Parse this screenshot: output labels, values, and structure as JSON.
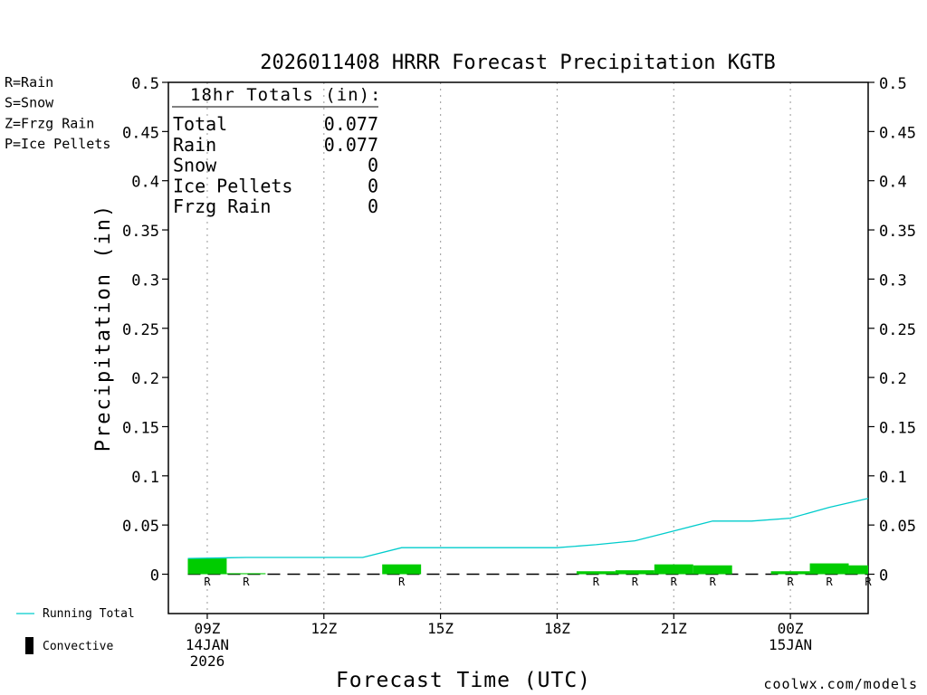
{
  "chart_data": {
    "type": "bar",
    "title": "2026011408 HRRR Forecast Precipitation KGTB",
    "xlabel": "Forecast Time (UTC)",
    "ylabel": "Precipitation (in)",
    "ylim": [
      -0.04,
      0.5
    ],
    "yticks": [
      "0",
      "0.05",
      "0.1",
      "0.15",
      "0.2",
      "0.25",
      "0.3",
      "0.35",
      "0.4",
      "0.45",
      "0.5"
    ],
    "xlim_hours": [
      0,
      18
    ],
    "xticks": [
      {
        "hour": 1,
        "lines": [
          "09Z",
          "14JAN",
          "2026"
        ]
      },
      {
        "hour": 4,
        "lines": [
          "12Z"
        ]
      },
      {
        "hour": 7,
        "lines": [
          "15Z"
        ]
      },
      {
        "hour": 10,
        "lines": [
          "18Z"
        ]
      },
      {
        "hour": 13,
        "lines": [
          "21Z"
        ]
      },
      {
        "hour": 16,
        "lines": [
          "00Z",
          "15JAN"
        ]
      }
    ],
    "grid": "vertical dotted",
    "bar_hours": [
      1,
      2,
      3,
      4,
      5,
      6,
      7,
      8,
      9,
      10,
      11,
      12,
      13,
      14,
      15,
      16,
      17,
      18
    ],
    "series": [
      {
        "name": "Rain",
        "color": "#00cc00",
        "values": [
          0.016,
          0.001,
          0,
          0,
          0,
          0.01,
          0,
          0,
          0,
          0,
          0.003,
          0.004,
          0.01,
          0.009,
          0,
          0.003,
          0.011,
          0.009
        ]
      },
      {
        "name": "Running Total",
        "color": "#00cccc",
        "values": [
          0.016,
          0.017,
          0.017,
          0.017,
          0.017,
          0.027,
          0.027,
          0.027,
          0.027,
          0.027,
          0.03,
          0.034,
          0.044,
          0.054,
          0.054,
          0.057,
          0.068,
          0.077
        ]
      }
    ],
    "precip_type_marks": [
      {
        "hour": 1,
        "label": "R"
      },
      {
        "hour": 2,
        "label": "R"
      },
      {
        "hour": 6,
        "label": "R"
      },
      {
        "hour": 11,
        "label": "R"
      },
      {
        "hour": 12,
        "label": "R"
      },
      {
        "hour": 13,
        "label": "R"
      },
      {
        "hour": 14,
        "label": "R"
      },
      {
        "hour": 16,
        "label": "R"
      },
      {
        "hour": 17,
        "label": "R"
      },
      {
        "hour": 18,
        "label": "R"
      }
    ],
    "totals_box": {
      "header": "18hr Totals (in):",
      "rows": [
        {
          "label": "Total",
          "value": "0.077"
        },
        {
          "label": "Rain",
          "value": "0.077"
        },
        {
          "label": "Snow",
          "value": "0"
        },
        {
          "label": "Ice Pellets",
          "value": "0"
        },
        {
          "label": "Frzg Rain",
          "value": "0"
        }
      ]
    },
    "type_legend": [
      {
        "label": "R=Rain",
        "color": "#22cc22"
      },
      {
        "label": "S=Snow",
        "color": "#3344dd"
      },
      {
        "label": "Z=Frzg Rain",
        "color": "#ee8833"
      },
      {
        "label": "P=Ice Pellets",
        "color": "#dd2288"
      }
    ],
    "line_legend": {
      "running_total": "Running Total",
      "convective": "Convective"
    },
    "credit": "coolwx.com/models",
    "credit_color": "#cc2222"
  }
}
